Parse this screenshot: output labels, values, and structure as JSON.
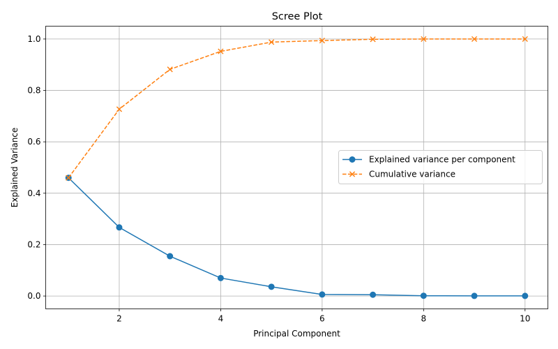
{
  "chart_data": {
    "type": "line",
    "title": "Scree Plot",
    "xlabel": "Principal Component",
    "ylabel": "Explained Variance",
    "xlim": [
      0.55,
      10.45
    ],
    "ylim": [
      -0.05,
      1.05
    ],
    "xticks": [
      2,
      4,
      6,
      8,
      10
    ],
    "yticks": [
      0.0,
      0.2,
      0.4,
      0.6,
      0.8,
      1.0
    ],
    "xtick_labels": [
      "2",
      "4",
      "6",
      "8",
      "10"
    ],
    "ytick_labels": [
      "0.0",
      "0.2",
      "0.4",
      "0.6",
      "0.8",
      "1.0"
    ],
    "grid": true,
    "legend_position": "center-right",
    "x": [
      1,
      2,
      3,
      4,
      5,
      6,
      7,
      8,
      9,
      10
    ],
    "series": [
      {
        "name": "Explained variance per component",
        "values": [
          0.46,
          0.267,
          0.155,
          0.07,
          0.036,
          0.006,
          0.005,
          0.001,
          0.0005,
          0.0005
        ],
        "color": "#1f77b4",
        "marker": "circle",
        "linestyle": "solid"
      },
      {
        "name": "Cumulative variance",
        "values": [
          0.46,
          0.727,
          0.882,
          0.952,
          0.988,
          0.994,
          0.999,
          1.0,
          1.0,
          1.0
        ],
        "color": "#ff7f0e",
        "marker": "x",
        "linestyle": "dashed"
      }
    ]
  }
}
